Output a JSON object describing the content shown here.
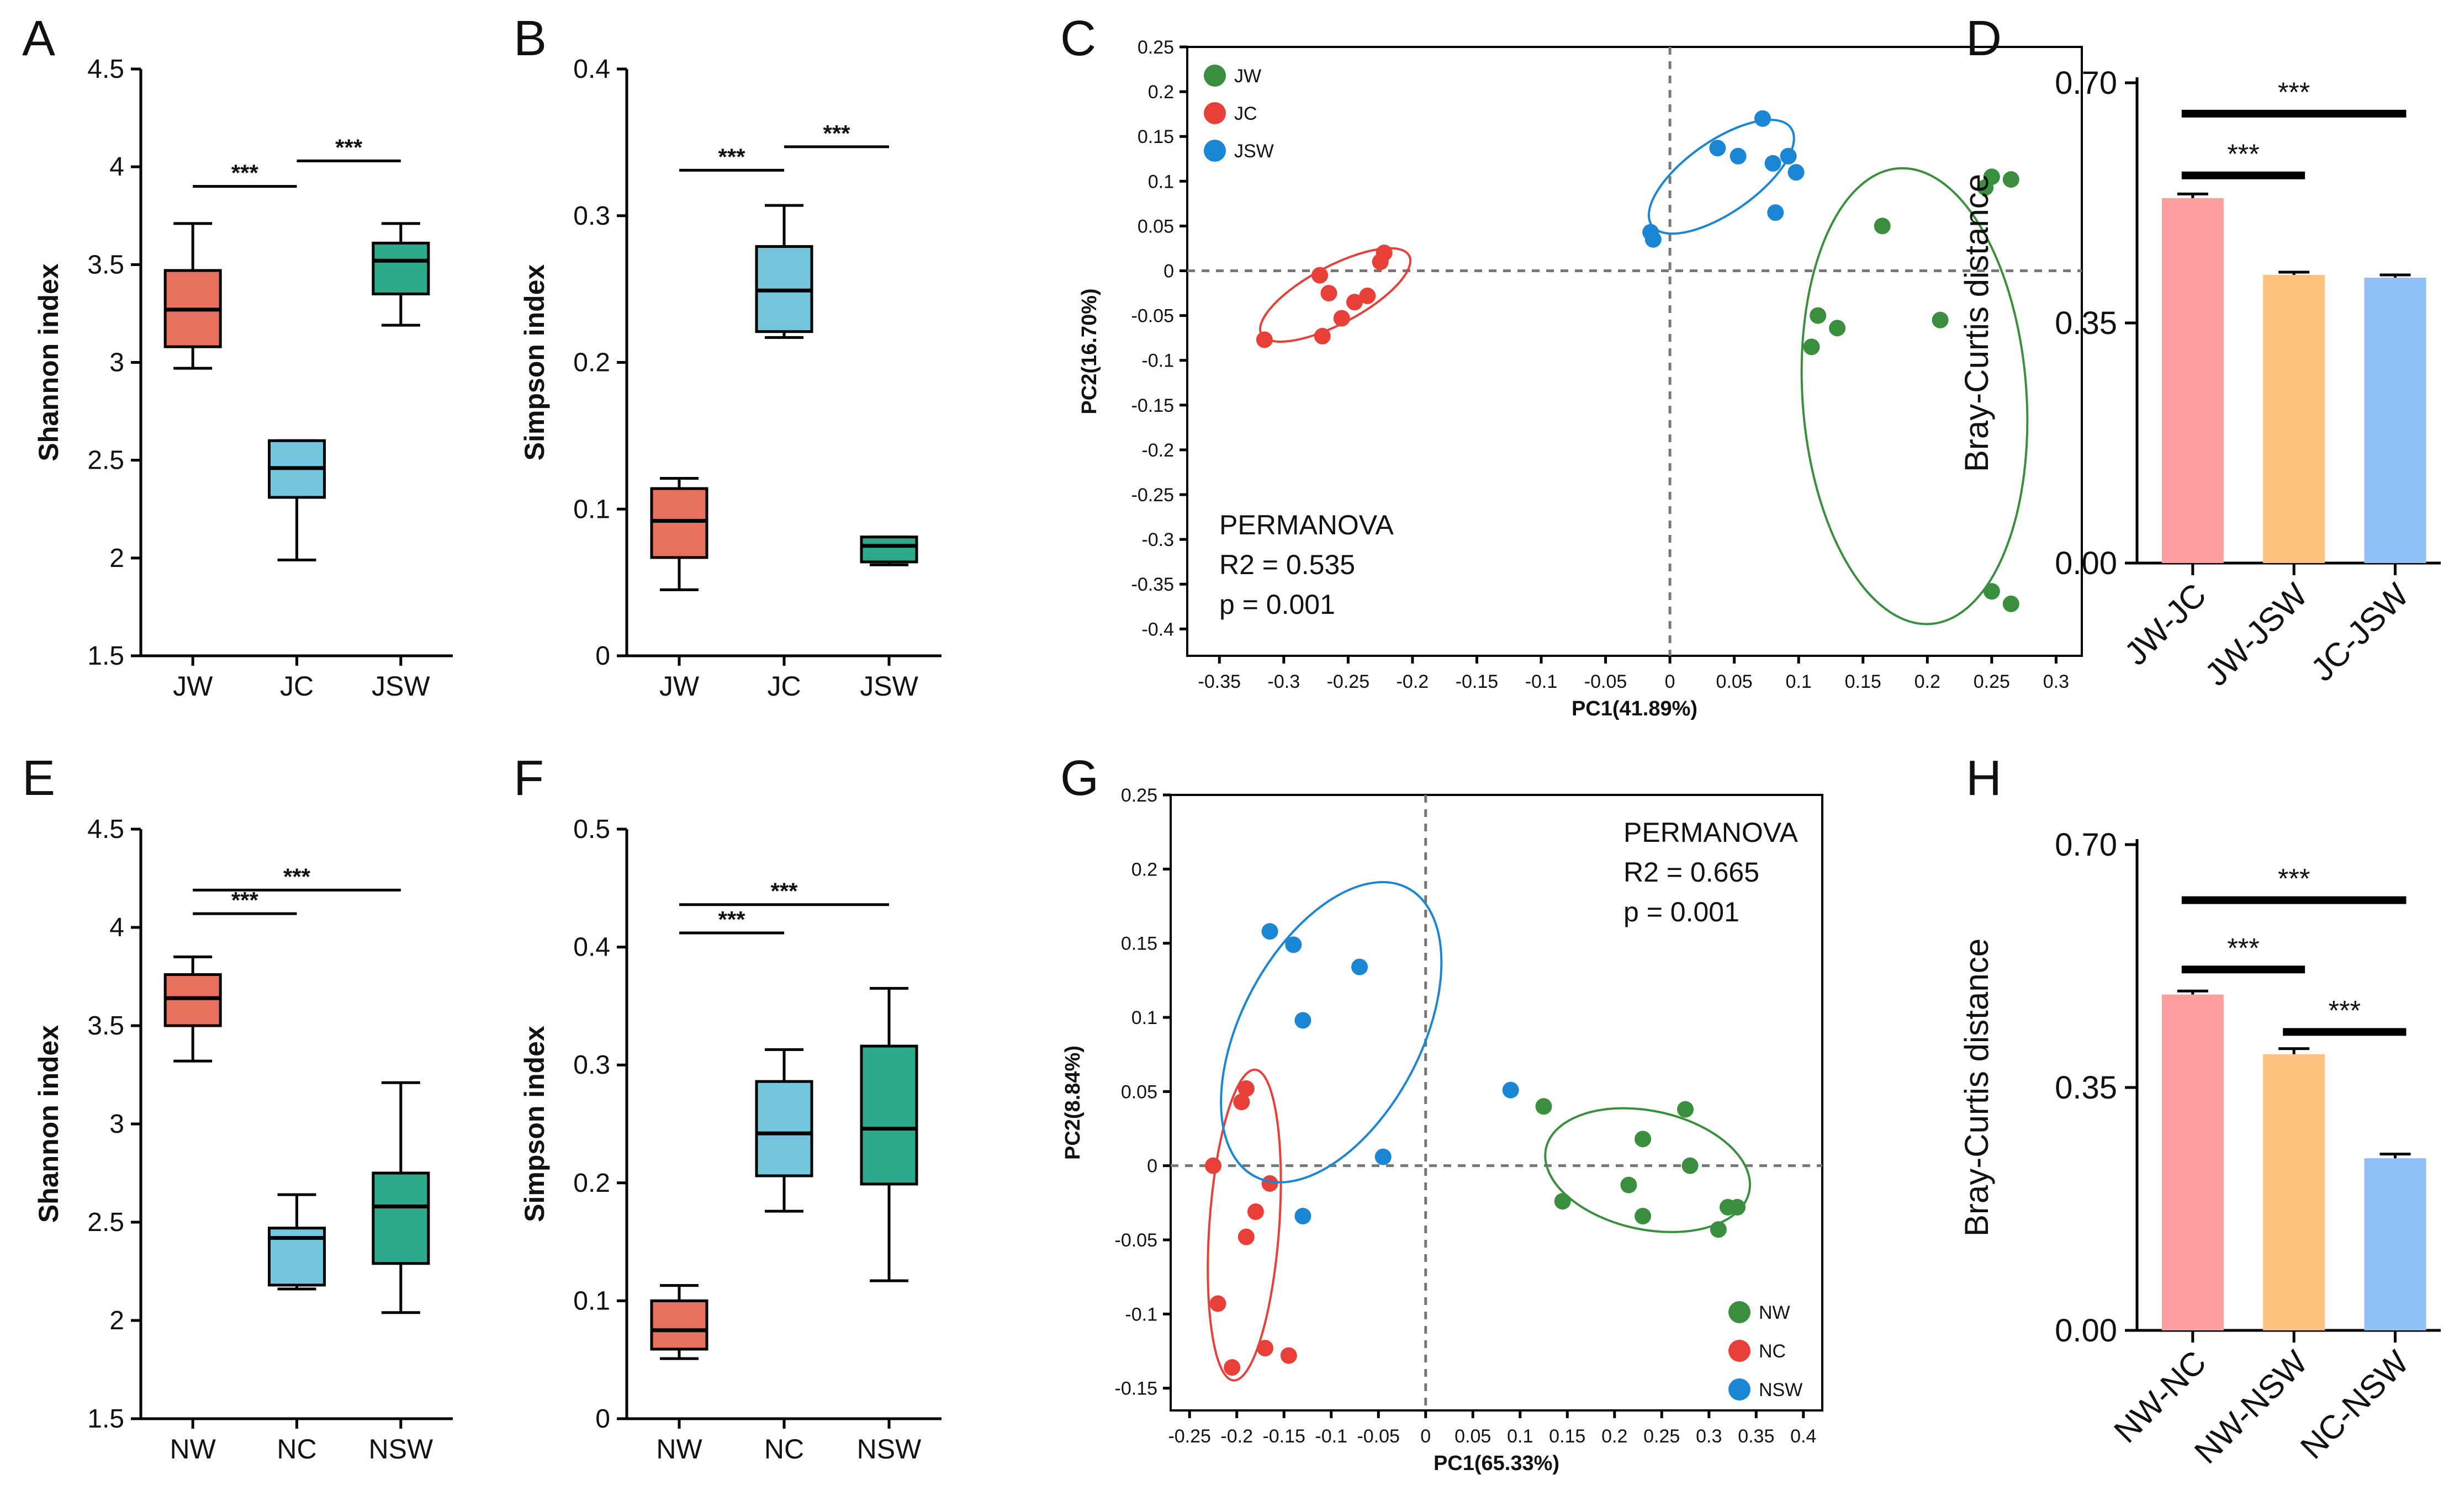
{
  "figure": {
    "panel_labels": [
      "A",
      "B",
      "C",
      "D",
      "E",
      "F",
      "G",
      "H"
    ]
  },
  "colors": {
    "red_box": "#E8705E",
    "blue_box": "#73C6DD",
    "teal_box": "#2DAA8C",
    "pcoa_green": "#3A8F3E",
    "pcoa_red": "#E84039",
    "pcoa_blue": "#1A86D4",
    "bar_pink": "#FF9E9E",
    "bar_orange": "#FFC27F",
    "bar_blue": "#8FC0F6"
  },
  "chart_data": [
    {
      "id": "A",
      "type": "box",
      "ylabel": "Shannon index",
      "ylim": [
        1.5,
        4.5
      ],
      "yticks": [
        "1.5",
        "2",
        "2.5",
        "3",
        "3.5",
        "4",
        "4.5"
      ],
      "categories": [
        "JW",
        "JC",
        "JSW"
      ],
      "boxes": [
        {
          "min": 2.97,
          "q1": 3.08,
          "median": 3.27,
          "q3": 3.47,
          "max": 3.71,
          "color": "#E8705E"
        },
        {
          "min": 1.99,
          "q1": 2.31,
          "median": 2.46,
          "q3": 2.6,
          "max": 2.6,
          "color": "#73C6DD"
        },
        {
          "min": 3.19,
          "q1": 3.35,
          "median": 3.52,
          "q3": 3.61,
          "max": 3.71,
          "color": "#2DAA8C"
        }
      ],
      "significance": [
        {
          "from": 0,
          "to": 1,
          "label": "***",
          "y": 3.9
        },
        {
          "from": 1,
          "to": 2,
          "label": "***",
          "y": 4.03
        }
      ]
    },
    {
      "id": "B",
      "type": "box",
      "ylabel": "Simpson index",
      "ylim": [
        0,
        0.4
      ],
      "yticks": [
        "0",
        "0.1",
        "0.2",
        "0.3",
        "0.4"
      ],
      "categories": [
        "JW",
        "JC",
        "JSW"
      ],
      "boxes": [
        {
          "min": 0.045,
          "q1": 0.067,
          "median": 0.092,
          "q3": 0.114,
          "max": 0.121,
          "color": "#E8705E"
        },
        {
          "min": 0.217,
          "q1": 0.221,
          "median": 0.249,
          "q3": 0.279,
          "max": 0.307,
          "color": "#73C6DD"
        },
        {
          "min": 0.062,
          "q1": 0.064,
          "median": 0.075,
          "q3": 0.081,
          "max": 0.081,
          "color": "#2DAA8C"
        }
      ],
      "significance": [
        {
          "from": 0,
          "to": 1,
          "label": "***",
          "y": 0.331
        },
        {
          "from": 1,
          "to": 2,
          "label": "***",
          "y": 0.347
        }
      ]
    },
    {
      "id": "C",
      "type": "scatter",
      "xlabel": "PC1(41.89%)",
      "ylabel": "PC2(16.70%)",
      "xlim": [
        -0.375,
        0.32
      ],
      "ylim": [
        -0.43,
        0.25
      ],
      "xticks": [
        -0.35,
        -0.3,
        -0.25,
        -0.2,
        -0.15,
        -0.1,
        -0.05,
        0,
        0.05,
        0.1,
        0.15,
        0.2,
        0.25,
        0.3
      ],
      "xtick_labels": [
        "-0.35",
        "-0.3",
        "-0.25",
        "-0.2",
        "-0.15",
        "-0.1",
        "-0.05",
        "0",
        "0.05",
        "0.1",
        "0.15",
        "0.2",
        "0.25",
        "0.3"
      ],
      "yticks": [
        0.25,
        0.2,
        0.15,
        0.1,
        0.05,
        0,
        -0.05,
        -0.1,
        -0.15,
        -0.2,
        -0.25,
        -0.3,
        -0.35,
        -0.4
      ],
      "ytick_labels": [
        "0.25",
        "0.2",
        "0.15",
        "0.1",
        "0.05",
        "0",
        "-0.05",
        "-0.1",
        "-0.15",
        "-0.2",
        "-0.25",
        "-0.3",
        "-0.35",
        "-0.4"
      ],
      "legend": [
        {
          "label": "JW",
          "color": "#3A8F3E"
        },
        {
          "label": "JC",
          "color": "#E84039"
        },
        {
          "label": "JSW",
          "color": "#1A86D4"
        }
      ],
      "annotation": [
        "PERMANOVA",
        "R2 = 0.535",
        "p = 0.001"
      ],
      "series": [
        {
          "name": "JW",
          "color": "#3A8F3E",
          "points": [
            [
              0.25,
              0.105
            ],
            [
              0.245,
              0.093
            ],
            [
              0.265,
              0.102
            ],
            [
              0.165,
              0.05
            ],
            [
              0.115,
              -0.05
            ],
            [
              0.13,
              -0.064
            ],
            [
              0.21,
              -0.055
            ],
            [
              0.11,
              -0.085
            ],
            [
              0.25,
              -0.358
            ],
            [
              0.265,
              -0.372
            ]
          ],
          "ellipse": {
            "cx": 0.19,
            "cy": -0.14,
            "rx": 0.087,
            "ry": 0.255,
            "angle": -4
          }
        },
        {
          "name": "JC",
          "color": "#E84039",
          "points": [
            [
              -0.315,
              -0.077
            ],
            [
              -0.27,
              -0.073
            ],
            [
              -0.255,
              -0.053
            ],
            [
              -0.245,
              -0.035
            ],
            [
              -0.265,
              -0.025
            ],
            [
              -0.235,
              -0.028
            ],
            [
              -0.272,
              -0.005
            ],
            [
              -0.225,
              0.01
            ],
            [
              -0.222,
              0.02
            ]
          ],
          "ellipse": {
            "cx": -0.26,
            "cy": -0.027,
            "rx": 0.065,
            "ry": 0.032,
            "angle": -28
          }
        },
        {
          "name": "JSW",
          "color": "#1A86D4",
          "points": [
            [
              -0.015,
              0.043
            ],
            [
              -0.013,
              0.035
            ],
            [
              0.037,
              0.137
            ],
            [
              0.053,
              0.128
            ],
            [
              0.072,
              0.17
            ],
            [
              0.08,
              0.12
            ],
            [
              0.092,
              0.128
            ],
            [
              0.098,
              0.11
            ],
            [
              0.082,
              0.065
            ]
          ],
          "ellipse": {
            "cx": 0.04,
            "cy": 0.105,
            "rx": 0.066,
            "ry": 0.04,
            "angle": -35
          }
        }
      ]
    },
    {
      "id": "D",
      "type": "bar",
      "ylabel": "Bray-Curtis distance",
      "ylim": [
        0,
        0.7
      ],
      "yticks": [
        "0.00",
        "0.35",
        "0.70"
      ],
      "categories": [
        "JW-JC",
        "JW-JSW",
        "JC-JSW"
      ],
      "values": [
        0.532,
        0.42,
        0.416
      ],
      "errors": [
        0.006,
        0.004,
        0.004
      ],
      "colors": [
        "#FF9E9E",
        "#FFC27F",
        "#8FC0F6"
      ],
      "significance": [
        {
          "from": 0,
          "to": 1,
          "label": "***",
          "y": 0.565
        },
        {
          "from": 0,
          "to": 2,
          "label": "***",
          "y": 0.655
        }
      ]
    },
    {
      "id": "E",
      "type": "box",
      "ylabel": "Shannon index",
      "ylim": [
        1.5,
        4.5
      ],
      "yticks": [
        "1.5",
        "2",
        "2.5",
        "3",
        "3.5",
        "4",
        "4.5"
      ],
      "categories": [
        "NW",
        "NC",
        "NSW"
      ],
      "boxes": [
        {
          "min": 3.32,
          "q1": 3.5,
          "median": 3.64,
          "q3": 3.76,
          "max": 3.85,
          "color": "#E8705E"
        },
        {
          "min": 2.16,
          "q1": 2.18,
          "median": 2.42,
          "q3": 2.47,
          "max": 2.64,
          "color": "#73C6DD"
        },
        {
          "min": 2.04,
          "q1": 2.29,
          "median": 2.58,
          "q3": 2.75,
          "max": 3.21,
          "color": "#2DAA8C"
        }
      ],
      "significance": [
        {
          "from": 0,
          "to": 1,
          "label": "***",
          "y": 4.07
        },
        {
          "from": 0,
          "to": 2,
          "label": "***",
          "y": 4.19
        }
      ]
    },
    {
      "id": "F",
      "type": "box",
      "ylabel": "Simpson index",
      "ylim": [
        0,
        0.5
      ],
      "yticks": [
        "0",
        "0.1",
        "0.2",
        "0.3",
        "0.4",
        "0.5"
      ],
      "categories": [
        "NW",
        "NC",
        "NSW"
      ],
      "boxes": [
        {
          "min": 0.051,
          "q1": 0.059,
          "median": 0.075,
          "q3": 0.1,
          "max": 0.113,
          "color": "#E8705E"
        },
        {
          "min": 0.176,
          "q1": 0.206,
          "median": 0.242,
          "q3": 0.286,
          "max": 0.313,
          "color": "#73C6DD"
        },
        {
          "min": 0.117,
          "q1": 0.199,
          "median": 0.246,
          "q3": 0.316,
          "max": 0.365,
          "color": "#2DAA8C"
        }
      ],
      "significance": [
        {
          "from": 0,
          "to": 1,
          "label": "***",
          "y": 0.412
        },
        {
          "from": 0,
          "to": 2,
          "label": "***",
          "y": 0.436
        }
      ]
    },
    {
      "id": "G",
      "type": "scatter",
      "xlabel": "PC1(65.33%)",
      "ylabel": "PC2(8.84%)",
      "xlim": [
        -0.27,
        0.42
      ],
      "ylim": [
        -0.165,
        0.25
      ],
      "xticks": [
        -0.25,
        -0.2,
        -0.15,
        -0.1,
        -0.05,
        0,
        0.05,
        0.1,
        0.15,
        0.2,
        0.25,
        0.3,
        0.35,
        0.4
      ],
      "xtick_labels": [
        "-0.25",
        "-0.2",
        "-0.15",
        "-0.1",
        "-0.05",
        "0",
        "0.05",
        "0.1",
        "0.15",
        "0.2",
        "0.25",
        "0.3",
        "0.35",
        "0.4"
      ],
      "yticks": [
        0.25,
        0.2,
        0.15,
        0.1,
        0.05,
        0,
        -0.05,
        -0.1,
        -0.15
      ],
      "ytick_labels": [
        "0.25",
        "0.2",
        "0.15",
        "0.1",
        "0.05",
        "0",
        "-0.05",
        "-0.1",
        "-0.15"
      ],
      "legend": [
        {
          "label": "NW",
          "color": "#3A8F3E"
        },
        {
          "label": "NC",
          "color": "#E84039"
        },
        {
          "label": "NSW",
          "color": "#1A86D4"
        }
      ],
      "annotation": [
        "PERMANOVA",
        "R2 = 0.665",
        "p = 0.001"
      ],
      "series": [
        {
          "name": "NW",
          "color": "#3A8F3E",
          "points": [
            [
              0.125,
              0.04
            ],
            [
              0.275,
              0.038
            ],
            [
              0.23,
              0.018
            ],
            [
              0.28,
              0.0
            ],
            [
              0.215,
              -0.013
            ],
            [
              0.145,
              -0.024
            ],
            [
              0.23,
              -0.034
            ],
            [
              0.32,
              -0.028
            ],
            [
              0.33,
              -0.028
            ],
            [
              0.31,
              -0.043
            ]
          ],
          "ellipse": {
            "cx": 0.235,
            "cy": -0.003,
            "rx": 0.11,
            "ry": 0.04,
            "angle": 12
          }
        },
        {
          "name": "NC",
          "color": "#E84039",
          "points": [
            [
              -0.19,
              0.052
            ],
            [
              -0.195,
              0.043
            ],
            [
              -0.225,
              0.0
            ],
            [
              -0.165,
              -0.012
            ],
            [
              -0.18,
              -0.031
            ],
            [
              -0.19,
              -0.048
            ],
            [
              -0.22,
              -0.093
            ],
            [
              -0.17,
              -0.123
            ],
            [
              -0.145,
              -0.128
            ],
            [
              -0.205,
              -0.136
            ]
          ],
          "ellipse": {
            "cx": -0.192,
            "cy": -0.04,
            "rx": 0.037,
            "ry": 0.105,
            "angle": 4
          }
        },
        {
          "name": "NSW",
          "color": "#1A86D4",
          "points": [
            [
              -0.165,
              0.158
            ],
            [
              -0.14,
              0.149
            ],
            [
              -0.07,
              0.134
            ],
            [
              -0.13,
              0.098
            ],
            [
              -0.045,
              0.006
            ],
            [
              -0.13,
              -0.034
            ],
            [
              0.09,
              0.051
            ]
          ],
          "ellipse": {
            "cx": -0.1,
            "cy": 0.09,
            "rx": 0.095,
            "ry": 0.11,
            "angle": 28
          }
        }
      ]
    },
    {
      "id": "H",
      "type": "bar",
      "ylabel": "Bray-Curtis distance",
      "ylim": [
        0,
        0.7
      ],
      "yticks": [
        "0.00",
        "0.35",
        "0.70"
      ],
      "categories": [
        "NW-NC",
        "NW-NSW",
        "NC-NSW"
      ],
      "values": [
        0.484,
        0.398,
        0.248
      ],
      "errors": [
        0.005,
        0.008,
        0.006
      ],
      "colors": [
        "#FF9E9E",
        "#FFC27F",
        "#8FC0F6"
      ],
      "significance": [
        {
          "from": 0,
          "to": 1,
          "label": "***",
          "y": 0.52
        },
        {
          "from": 1,
          "to": 2,
          "label": "***",
          "y": 0.43
        },
        {
          "from": 0,
          "to": 2,
          "label": "***",
          "y": 0.62
        }
      ]
    }
  ]
}
